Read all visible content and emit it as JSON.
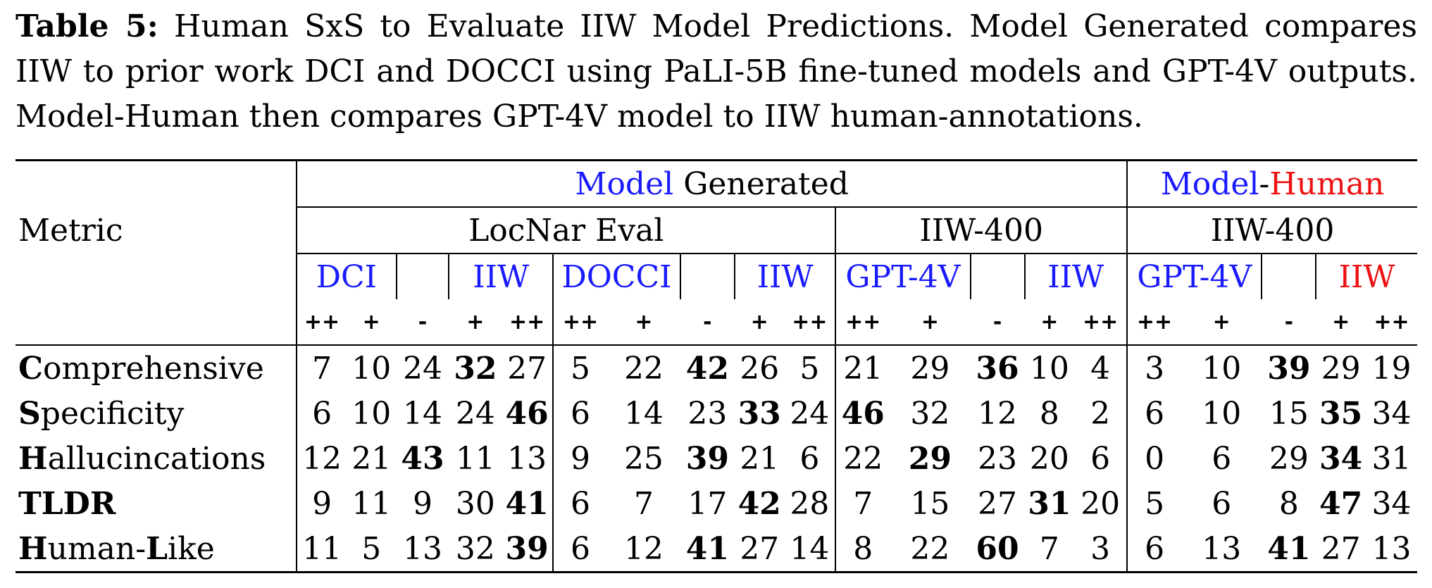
{
  "caption": {
    "label": "Table 5:",
    "text": "Human SxS to Evaluate IIW Model Predictions. Model Generated compares IIW to prior work DCI and DOCCI using PaLI-5B fine-tuned models and GPT-4V outputs. Model-Human then compares GPT-4V model to IIW human-annotations."
  },
  "header": {
    "metric": "Metric",
    "model_generated": {
      "part1": "Model",
      "part2": "Generated"
    },
    "model_human": {
      "part1": "Model",
      "dash": "-",
      "part2": "Human"
    },
    "locnar": "LocNar Eval",
    "iiw400_a": "IIW-400",
    "iiw400_b": "IIW-400",
    "pairs": [
      {
        "left": "DCI",
        "right": "IIW"
      },
      {
        "left": "DOCCI",
        "right": "IIW"
      },
      {
        "left": "GPT-4V",
        "right": "IIW"
      },
      {
        "left": "GPT-4V",
        "right": "IIW"
      }
    ],
    "symbols": [
      "++",
      "+",
      "-",
      "+",
      "++"
    ]
  },
  "rows": [
    {
      "first": "C",
      "rest": "omprehensive",
      "second_cap": "",
      "tail": "",
      "values": [
        7,
        10,
        24,
        32,
        27,
        5,
        22,
        42,
        26,
        5,
        21,
        29,
        36,
        10,
        4,
        3,
        10,
        39,
        29,
        19
      ],
      "bold": [
        3,
        7,
        12,
        17
      ]
    },
    {
      "first": "S",
      "rest": "pecificity",
      "second_cap": "",
      "tail": "",
      "values": [
        6,
        10,
        14,
        24,
        46,
        6,
        14,
        23,
        33,
        24,
        46,
        32,
        12,
        8,
        2,
        6,
        10,
        15,
        35,
        34
      ],
      "bold": [
        4,
        8,
        10,
        18
      ]
    },
    {
      "first": "H",
      "rest": "allucincations",
      "second_cap": "",
      "tail": "",
      "values": [
        12,
        21,
        43,
        11,
        13,
        9,
        25,
        39,
        21,
        6,
        22,
        29,
        23,
        20,
        6,
        0,
        6,
        29,
        34,
        31
      ],
      "bold": [
        2,
        7,
        11,
        18
      ]
    },
    {
      "first": "TLDR",
      "rest": "",
      "second_cap": "",
      "tail": "",
      "values": [
        9,
        11,
        9,
        30,
        41,
        6,
        7,
        17,
        42,
        28,
        7,
        15,
        27,
        31,
        20,
        5,
        6,
        8,
        47,
        34
      ],
      "bold": [
        4,
        8,
        13,
        18
      ]
    },
    {
      "first": "H",
      "rest": "uman-",
      "second_cap": "L",
      "tail": "ike",
      "values": [
        11,
        5,
        13,
        32,
        39,
        6,
        12,
        41,
        27,
        14,
        8,
        22,
        60,
        7,
        3,
        6,
        13,
        41,
        27,
        13
      ],
      "bold": [
        4,
        7,
        12,
        17
      ]
    }
  ]
}
